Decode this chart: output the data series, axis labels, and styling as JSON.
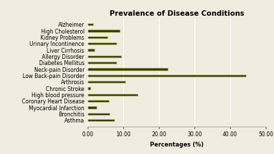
{
  "title": "Prevalence of Disease Conditions",
  "xlabel": "Percentages (%)",
  "categories": [
    "Asthma",
    "Bronchitis",
    "Myocardial Infarction",
    "Coronary Heart Disease",
    "High blood pressure",
    "Chronic Stroke",
    "Arthrosis",
    "Low Back-pain Disorder",
    "Neck-pain Disorder",
    "Diabetes Mellitus",
    "Allergy Disorder",
    "Liver Cirrhosis",
    "Urinary Incontinence",
    "Kidney Problems",
    "High Cholesterol",
    "Alzheimer"
  ],
  "values": [
    7.5,
    6.2,
    2.5,
    6.0,
    14.0,
    0.8,
    10.5,
    44.5,
    22.5,
    8.0,
    9.5,
    2.0,
    8.0,
    5.5,
    9.0,
    1.5
  ],
  "bar_color": "#3d3d10",
  "bar_edge_color": "#c8c870",
  "background_color": "#f0ece0",
  "grid_color": "#ffffff",
  "xlim": [
    0,
    50
  ],
  "xticks": [
    0.0,
    10.0,
    20.0,
    30.0,
    40.0,
    50.0
  ],
  "title_fontsize": 7.5,
  "label_fontsize": 5.5,
  "tick_fontsize": 5.5,
  "bar_height": 0.35
}
